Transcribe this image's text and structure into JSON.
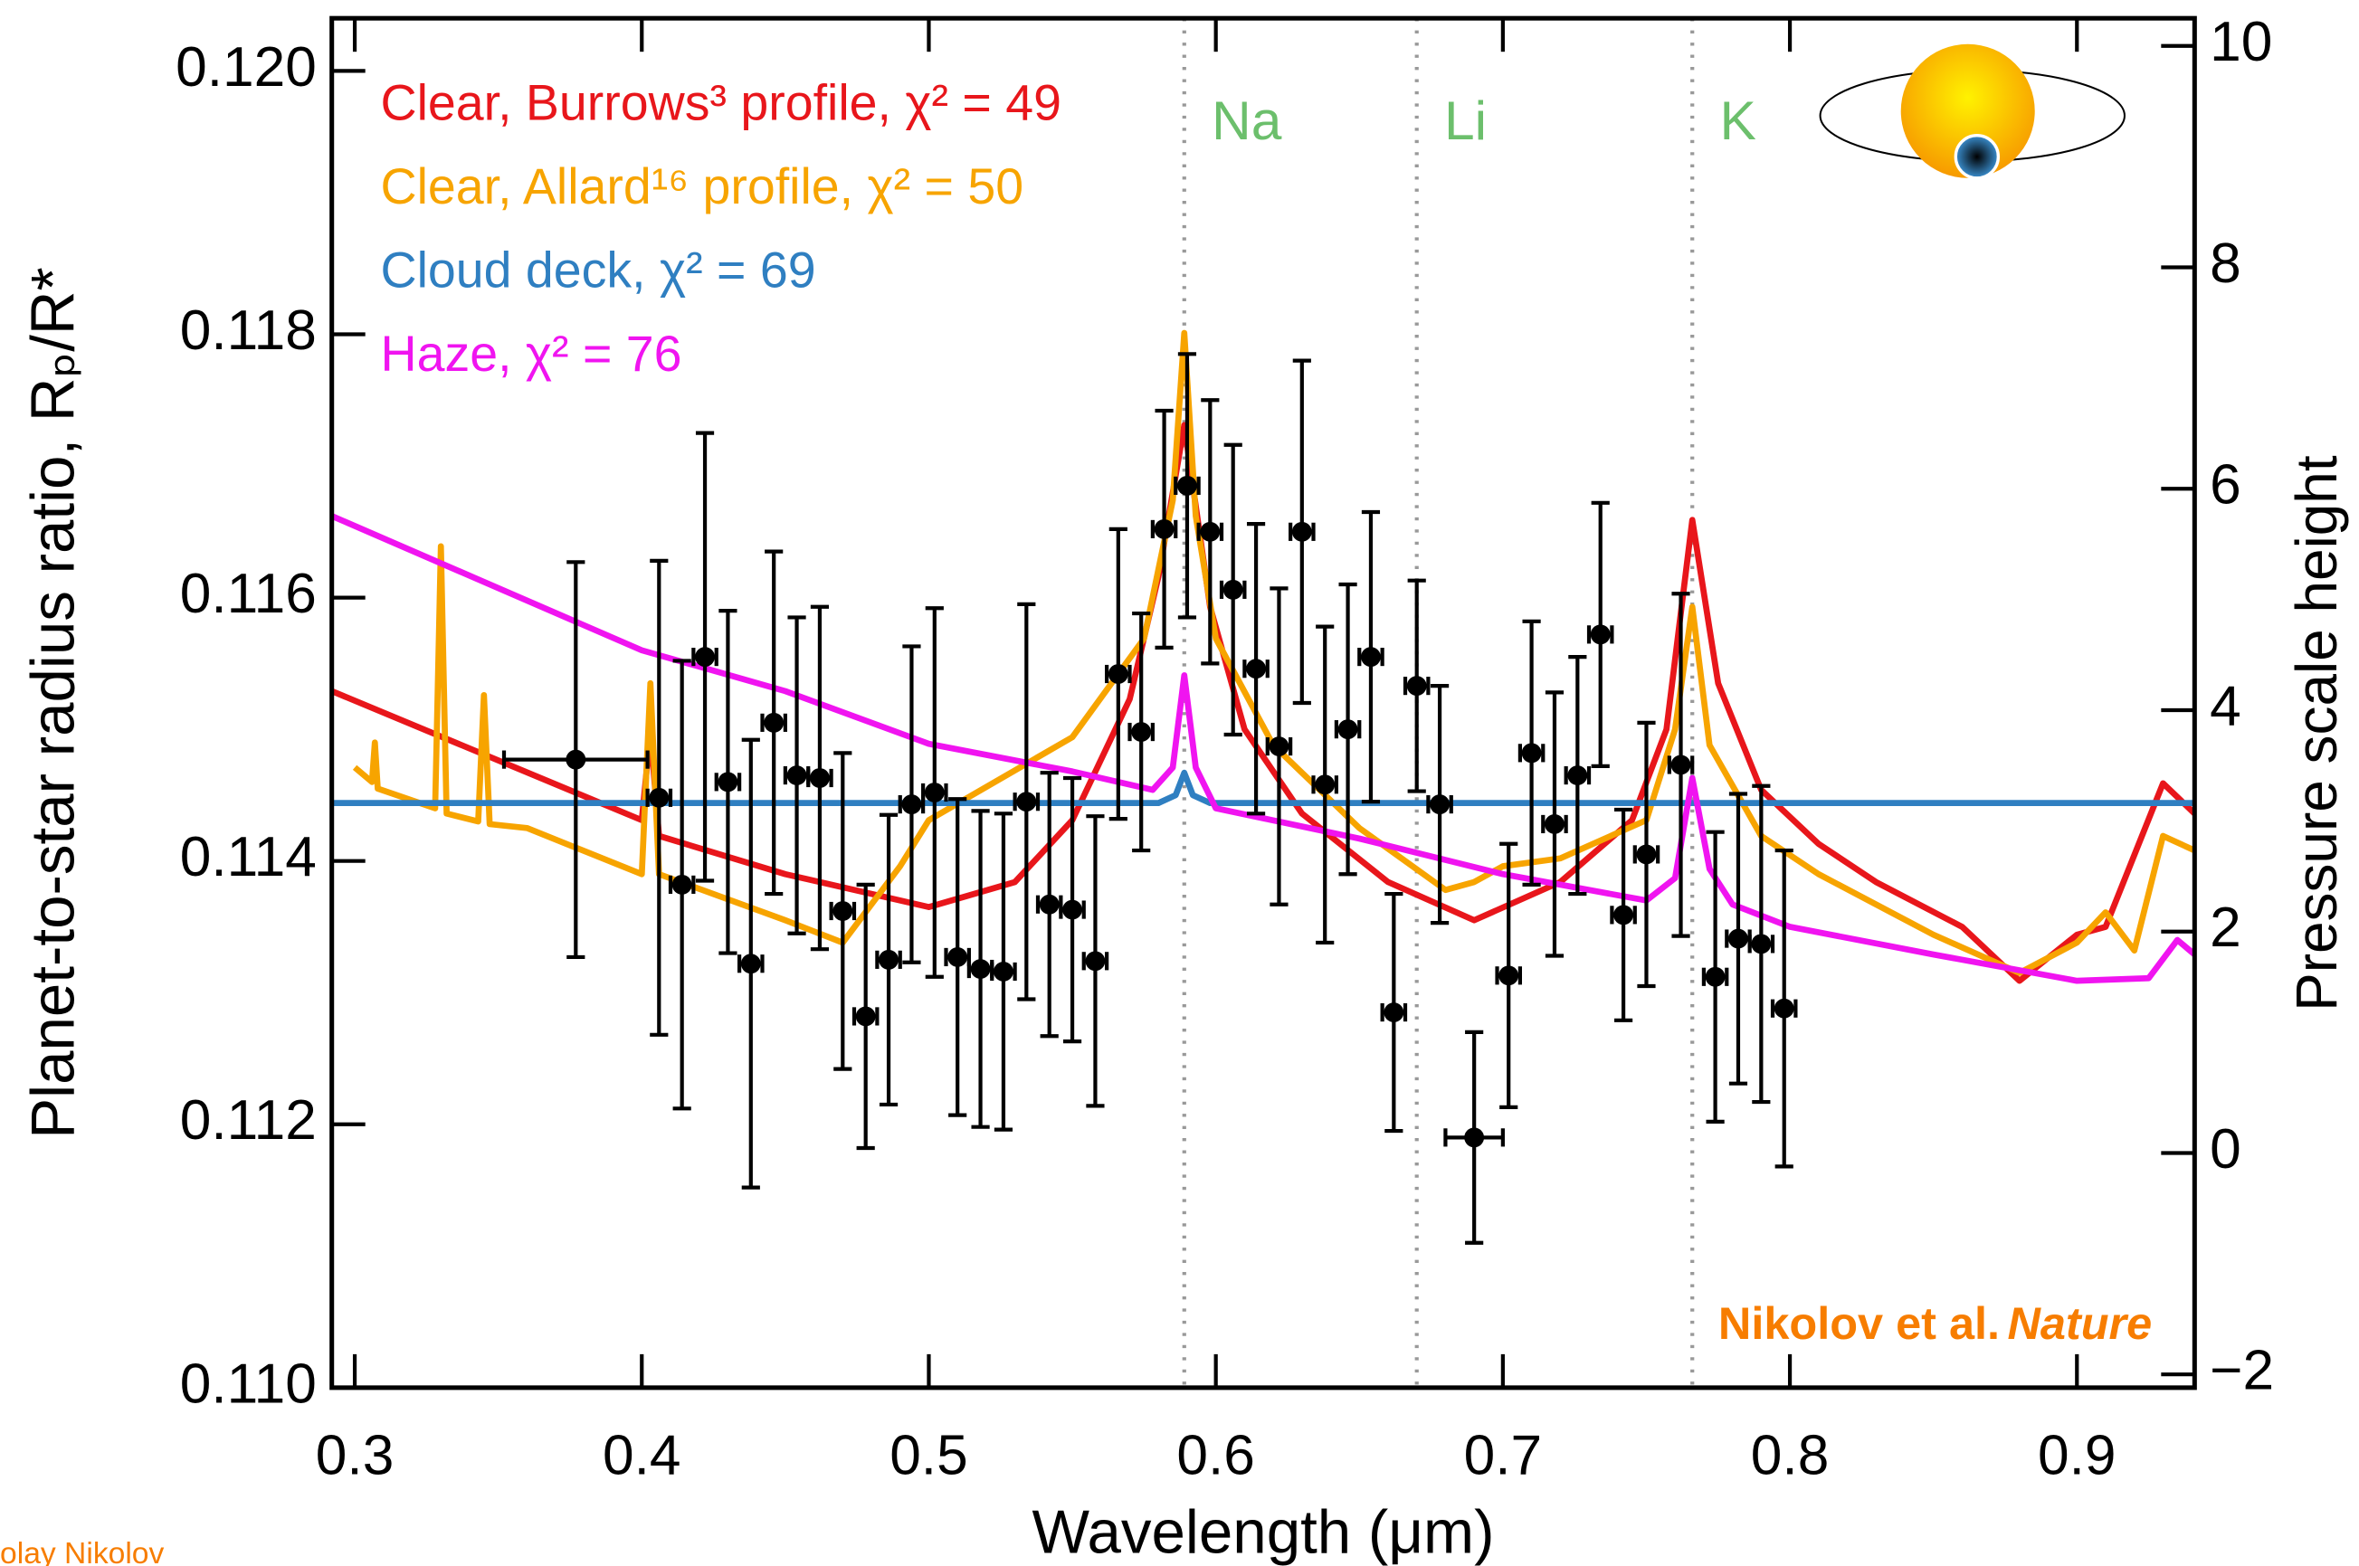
{
  "chart_data": {
    "type": "line",
    "xlabel": "Wavelength (μm)",
    "ylabel": "Planet-to-star radius ratio, Rₚ/R*",
    "y2label": "Pressure scale height",
    "credit": "Nikolov et al.",
    "credit_journal": "Nature",
    "author": "olay Nikolov",
    "xlim": [
      0.292,
      0.941
    ],
    "xticks": [
      0.3,
      0.4,
      0.5,
      0.6,
      0.7,
      0.8,
      0.9
    ],
    "ylim": [
      0.11,
      0.1204
    ],
    "yticks": [
      {
        "value": 0.11,
        "label": "0.110"
      },
      {
        "value": 0.112,
        "label": "0.112"
      },
      {
        "value": 0.114,
        "label": "0.114"
      },
      {
        "value": 0.116,
        "label": "0.116"
      },
      {
        "value": 0.118,
        "label": "0.118"
      },
      {
        "value": 0.12,
        "label": "0.120"
      }
    ],
    "y2lim": [
      -2.12,
      10.25
    ],
    "y2ticks": [
      {
        "value": -2,
        "label": "−2"
      },
      0,
      2,
      4,
      6,
      8,
      10
    ],
    "reference_lines": [
      {
        "label": "Na",
        "x": 0.589
      },
      {
        "label": "Li",
        "x": 0.67
      },
      {
        "label": "K",
        "x": 0.766
      }
    ],
    "series": [
      {
        "name": "Clear, Burrows³ profile, χ² = 49",
        "color": "#e8161b",
        "x": [
          0.292,
          0.4,
          0.403,
          0.406,
          0.45,
          0.5,
          0.53,
          0.55,
          0.57,
          0.58,
          0.589,
          0.598,
          0.61,
          0.63,
          0.66,
          0.69,
          0.72,
          0.745,
          0.757,
          0.766,
          0.775,
          0.79,
          0.81,
          0.83,
          0.86,
          0.88,
          0.9,
          0.91,
          0.93,
          0.941
        ],
        "values": [
          0.11529,
          0.11431,
          0.11498,
          0.11419,
          0.1139,
          0.11365,
          0.11384,
          0.11431,
          0.11523,
          0.11616,
          0.11731,
          0.11593,
          0.115,
          0.11436,
          0.11384,
          0.11355,
          0.11384,
          0.11431,
          0.115,
          0.11659,
          0.11535,
          0.11454,
          0.11413,
          0.11384,
          0.1135,
          0.11309,
          0.11344,
          0.1135,
          0.11459,
          0.11436
        ]
      },
      {
        "name": "Clear, Allard¹⁶ profile, χ² = 50",
        "color": "#f7a400",
        "x": [
          0.3,
          0.306,
          0.307,
          0.308,
          0.328,
          0.33,
          0.332,
          0.343,
          0.345,
          0.347,
          0.36,
          0.4,
          0.403,
          0.406,
          0.45,
          0.47,
          0.49,
          0.5,
          0.55,
          0.575,
          0.585,
          0.589,
          0.593,
          0.6,
          0.62,
          0.65,
          0.68,
          0.69,
          0.7,
          0.72,
          0.75,
          0.76,
          0.766,
          0.772,
          0.79,
          0.81,
          0.85,
          0.88,
          0.9,
          0.91,
          0.92,
          0.93,
          0.941
        ],
        "values": [
          0.11471,
          0.1146,
          0.1149,
          0.11455,
          0.1144,
          0.11639,
          0.11436,
          0.1143,
          0.11526,
          0.11428,
          0.11425,
          0.1139,
          0.11535,
          0.1139,
          0.11355,
          0.11338,
          0.11396,
          0.11431,
          0.11494,
          0.11569,
          0.11674,
          0.11801,
          0.11662,
          0.11569,
          0.11488,
          0.11425,
          0.11378,
          0.11384,
          0.11396,
          0.11402,
          0.11431,
          0.115,
          0.11593,
          0.11488,
          0.11419,
          0.1139,
          0.11344,
          0.11315,
          0.11338,
          0.11361,
          0.11332,
          0.11419,
          0.11408
        ]
      },
      {
        "name": "Cloud deck, χ² = 69",
        "color": "#2f7fc1",
        "x": [
          0.292,
          0.58,
          0.586,
          0.589,
          0.592,
          0.598,
          0.941
        ],
        "values": [
          0.11444,
          0.11444,
          0.1145,
          0.11467,
          0.1145,
          0.11444,
          0.11444
        ]
      },
      {
        "name": "Haze, χ² = 76",
        "color": "#f014f0",
        "x": [
          0.292,
          0.4,
          0.45,
          0.5,
          0.55,
          0.578,
          0.585,
          0.589,
          0.593,
          0.6,
          0.65,
          0.7,
          0.75,
          0.76,
          0.766,
          0.772,
          0.78,
          0.8,
          0.85,
          0.9,
          0.925,
          0.935,
          0.941
        ],
        "values": [
          0.11662,
          0.1156,
          0.11529,
          0.11489,
          0.11468,
          0.11454,
          0.11471,
          0.11541,
          0.11471,
          0.1144,
          0.11417,
          0.1139,
          0.1137,
          0.11387,
          0.11463,
          0.11394,
          0.11367,
          0.1135,
          0.11329,
          0.11309,
          0.11311,
          0.1134,
          0.11329
        ]
      }
    ],
    "measurements": {
      "color": "#000000",
      "x": [
        0.377,
        0.406,
        0.414,
        0.422,
        0.43,
        0.438,
        0.446,
        0.454,
        0.462,
        0.47,
        0.478,
        0.486,
        0.494,
        0.502,
        0.51,
        0.518,
        0.526,
        0.534,
        0.542,
        0.55,
        0.558,
        0.566,
        0.574,
        0.582,
        0.59,
        0.598,
        0.606,
        0.614,
        0.622,
        0.63,
        0.638,
        0.646,
        0.654,
        0.662,
        0.67,
        0.678,
        0.69,
        0.702,
        0.71,
        0.718,
        0.726,
        0.734,
        0.742,
        0.75,
        0.762,
        0.774,
        0.782,
        0.79,
        0.798
      ],
      "values": [
        0.11477,
        0.11448,
        0.11382,
        0.11555,
        0.1146,
        0.11322,
        0.11505,
        0.11465,
        0.11463,
        0.11362,
        0.11282,
        0.11325,
        0.11443,
        0.11452,
        0.11327,
        0.11318,
        0.11316,
        0.11445,
        0.11367,
        0.11363,
        0.11324,
        0.11542,
        0.11498,
        0.11652,
        0.11685,
        0.1165,
        0.11606,
        0.11546,
        0.11487,
        0.1165,
        0.11458,
        0.115,
        0.11555,
        0.11285,
        0.11533,
        0.11443,
        0.1119,
        0.11313,
        0.11482,
        0.11428,
        0.11465,
        0.11572,
        0.11359,
        0.11405,
        0.11473,
        0.11312,
        0.11341,
        0.11337,
        0.11288
      ],
      "yerr": [
        0.0015,
        0.0018,
        0.0017,
        0.0017,
        0.0013,
        0.0017,
        0.0013,
        0.0012,
        0.0013,
        0.0012,
        0.001,
        0.0011,
        0.0012,
        0.0014,
        0.0012,
        0.0012,
        0.0012,
        0.0015,
        0.001,
        0.001,
        0.0011,
        0.0011,
        0.0009,
        0.0009,
        0.001,
        0.001,
        0.0011,
        0.0011,
        0.0012,
        0.0013,
        0.0012,
        0.0011,
        0.0011,
        0.0009,
        0.0008,
        0.0009,
        0.0008,
        0.001,
        0.001,
        0.001,
        0.0009,
        0.001,
        0.0008,
        0.001,
        0.0013,
        0.0011,
        0.0011,
        0.0012,
        0.0012
      ],
      "xerr": [
        0.025,
        0.004,
        0.004,
        0.004,
        0.004,
        0.004,
        0.004,
        0.004,
        0.004,
        0.004,
        0.004,
        0.004,
        0.004,
        0.004,
        0.004,
        0.004,
        0.004,
        0.004,
        0.004,
        0.004,
        0.004,
        0.004,
        0.004,
        0.004,
        0.004,
        0.004,
        0.004,
        0.004,
        0.004,
        0.004,
        0.004,
        0.004,
        0.004,
        0.004,
        0.004,
        0.004,
        0.01,
        0.004,
        0.004,
        0.004,
        0.004,
        0.004,
        0.004,
        0.004,
        0.004,
        0.004,
        0.004,
        0.004,
        0.004
      ]
    }
  }
}
